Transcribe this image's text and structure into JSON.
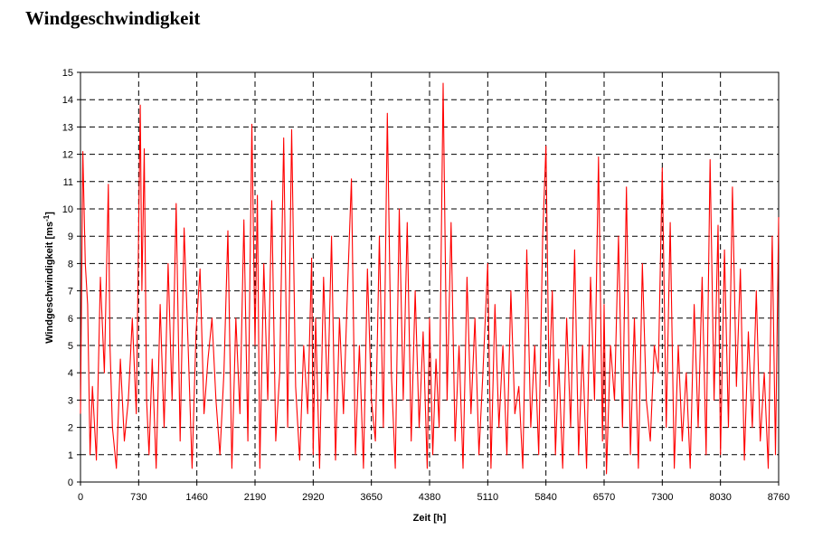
{
  "chart_data": {
    "type": "line",
    "title": "Windgeschwindigkeit",
    "xlabel": "Zeit [h]",
    "ylabel": "Windgeschwindigkeit [ms",
    "ylabel_sup": "-1",
    "ylabel_end": "]",
    "xlim": [
      0,
      8760
    ],
    "ylim": [
      0,
      15
    ],
    "xticks": [
      0,
      730,
      1460,
      2190,
      2920,
      3650,
      4380,
      5110,
      5840,
      6570,
      7300,
      8030,
      8760
    ],
    "yticks": [
      0,
      1,
      2,
      3,
      4,
      5,
      6,
      7,
      8,
      9,
      10,
      11,
      12,
      13,
      14,
      15
    ],
    "grid": true,
    "legend": "none",
    "series_color": "#ff0000",
    "series": [
      {
        "x": [
          0,
          30,
          60,
          90,
          120,
          150,
          200,
          250,
          300,
          350,
          370,
          400,
          450,
          500,
          550,
          600,
          650,
          700,
          750,
          770,
          800,
          830,
          860,
          900,
          950,
          1000,
          1050,
          1100,
          1150,
          1200,
          1250,
          1300,
          1350,
          1400,
          1450,
          1500,
          1550,
          1600,
          1650,
          1700,
          1750,
          1800,
          1850,
          1900,
          1950,
          2000,
          2050,
          2100,
          2150,
          2190,
          2220,
          2250,
          2300,
          2350,
          2400,
          2450,
          2500,
          2550,
          2600,
          2650,
          2700,
          2750,
          2800,
          2850,
          2900,
          2920,
          2950,
          3000,
          3050,
          3100,
          3150,
          3200,
          3250,
          3300,
          3350,
          3400,
          3450,
          3500,
          3550,
          3600,
          3650,
          3700,
          3750,
          3800,
          3850,
          3900,
          3950,
          4000,
          4050,
          4100,
          4150,
          4200,
          4250,
          4300,
          4350,
          4380,
          4420,
          4460,
          4500,
          4550,
          4600,
          4650,
          4700,
          4750,
          4800,
          4850,
          4900,
          4950,
          5000,
          5050,
          5110,
          5150,
          5200,
          5250,
          5300,
          5350,
          5400,
          5450,
          5500,
          5550,
          5600,
          5650,
          5700,
          5750,
          5800,
          5840,
          5880,
          5920,
          5960,
          6000,
          6050,
          6100,
          6150,
          6200,
          6250,
          6300,
          6350,
          6400,
          6450,
          6500,
          6550,
          6570,
          6600,
          6650,
          6700,
          6750,
          6800,
          6850,
          6900,
          6950,
          7000,
          7050,
          7100,
          7150,
          7200,
          7250,
          7300,
          7350,
          7400,
          7450,
          7500,
          7550,
          7600,
          7650,
          7700,
          7750,
          7800,
          7850,
          7900,
          7950,
          8000,
          8030,
          8080,
          8130,
          8180,
          8230,
          8280,
          8330,
          8380,
          8430,
          8480,
          8530,
          8580,
          8630,
          8680,
          8720,
          8760
        ],
        "y": [
          2.5,
          12.1,
          8.0,
          6.5,
          1.0,
          3.5,
          0.8,
          7.5,
          4.0,
          10.9,
          5.0,
          2.0,
          0.5,
          4.5,
          1.5,
          3.0,
          6.0,
          2.5,
          13.8,
          7.0,
          12.2,
          3.0,
          1.0,
          4.5,
          0.5,
          6.5,
          2.0,
          8.0,
          3.0,
          10.2,
          1.5,
          9.3,
          5.0,
          0.5,
          5.5,
          7.8,
          2.5,
          4.5,
          6.0,
          3.0,
          1.0,
          4.0,
          9.2,
          0.5,
          6.0,
          2.5,
          9.6,
          1.5,
          13.1,
          5.0,
          10.5,
          0.5,
          8.0,
          3.0,
          10.3,
          1.5,
          4.0,
          12.6,
          2.0,
          12.9,
          3.5,
          0.8,
          5.0,
          2.5,
          8.2,
          1.0,
          6.0,
          0.5,
          7.5,
          3.0,
          9.0,
          0.8,
          6.0,
          2.5,
          7.0,
          11.1,
          1.0,
          5.0,
          0.5,
          7.8,
          3.0,
          1.5,
          9.0,
          2.0,
          13.5,
          4.0,
          0.5,
          10.0,
          3.0,
          9.5,
          1.5,
          7.0,
          2.0,
          5.5,
          0.5,
          6.0,
          1.0,
          4.5,
          2.0,
          14.6,
          3.0,
          9.5,
          1.5,
          5.0,
          0.5,
          7.5,
          2.5,
          6.0,
          1.0,
          4.0,
          8.0,
          0.5,
          6.5,
          2.0,
          5.0,
          1.0,
          7.0,
          2.5,
          3.5,
          0.5,
          8.5,
          2.0,
          5.0,
          1.0,
          9.0,
          12.3,
          3.5,
          7.0,
          1.0,
          4.5,
          0.5,
          6.0,
          2.0,
          8.5,
          1.0,
          5.0,
          0.5,
          7.5,
          3.0,
          11.9,
          1.5,
          6.5,
          0.3,
          5.0,
          3.0,
          9.0,
          2.0,
          10.8,
          1.0,
          6.0,
          0.5,
          8.0,
          3.0,
          1.5,
          5.0,
          4.0,
          11.5,
          2.0,
          9.5,
          0.5,
          5.0,
          1.5,
          4.0,
          0.5,
          6.5,
          2.0,
          7.5,
          1.0,
          11.8,
          3.0,
          9.4,
          1.0,
          8.5,
          2.0,
          10.8,
          3.5,
          7.8,
          0.8,
          5.5,
          2.0,
          7.0,
          1.5,
          4.0,
          0.5,
          9.0,
          1.0,
          9.7
        ]
      }
    ]
  }
}
